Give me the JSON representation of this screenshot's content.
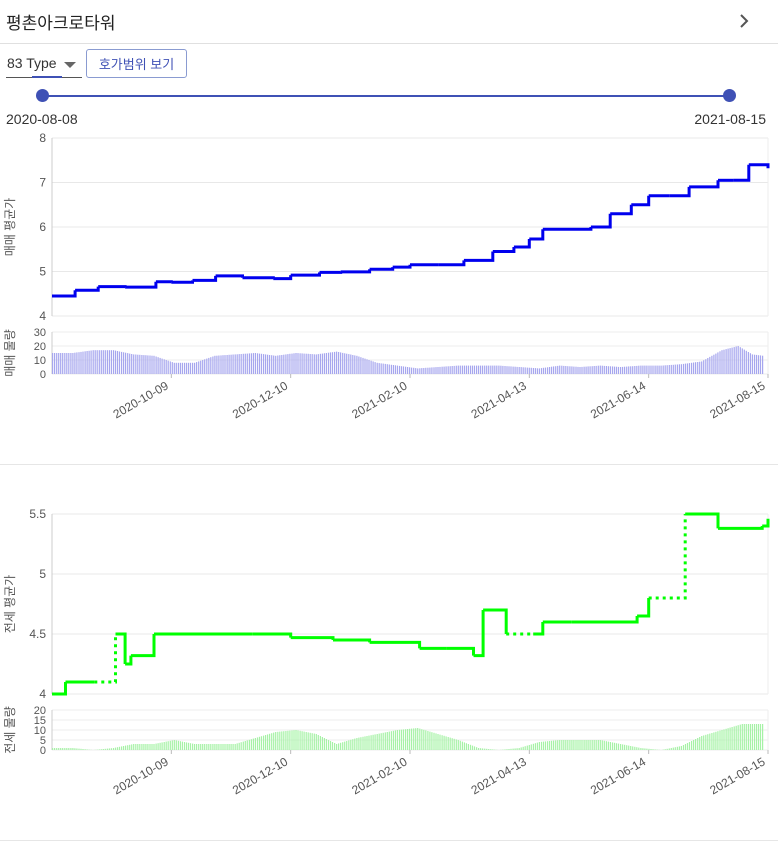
{
  "header": {
    "title": "평촌아크로타워"
  },
  "controls": {
    "type_select": "83 Type",
    "range_button": "호가범위 보기",
    "range_start": "2020-08-08",
    "range_end": "2021-08-15"
  },
  "colors": {
    "accent": "#3f51b5",
    "sale": "#0000ee",
    "sale_volume": "#a6a6ee",
    "rent": "#00ff00",
    "rent_volume": "#a6f2a6"
  },
  "icons": {
    "header_chevron": "chevron-right-icon",
    "select_caret": "caret-down-icon"
  },
  "chart_data": [
    {
      "type": "line",
      "ylabel": "매매 평균가",
      "ylim": [
        4,
        8
      ],
      "yticks": [
        "4",
        "5",
        "6",
        "7",
        "8"
      ],
      "grid": true,
      "series": [
        {
          "x": [
            "2020-08-08",
            "2020-08-20",
            "2020-09-01",
            "2020-09-15",
            "2020-10-01",
            "2020-10-09",
            "2020-10-20",
            "2020-11-01",
            "2020-11-15",
            "2020-12-01",
            "2020-12-10",
            "2020-12-25",
            "2021-01-05",
            "2021-01-20",
            "2021-02-01",
            "2021-02-10",
            "2021-02-25",
            "2021-03-10",
            "2021-03-25",
            "2021-04-05",
            "2021-04-13",
            "2021-04-20",
            "2021-05-01",
            "2021-05-15",
            "2021-05-25",
            "2021-06-05",
            "2021-06-14",
            "2021-06-25",
            "2021-07-05",
            "2021-07-20",
            "2021-07-28",
            "2021-08-05",
            "2021-08-15"
          ],
          "y": [
            4.45,
            4.58,
            4.66,
            4.65,
            4.77,
            4.76,
            4.8,
            4.9,
            4.86,
            4.84,
            4.92,
            4.98,
            4.99,
            5.05,
            5.1,
            5.15,
            5.15,
            5.25,
            5.45,
            5.55,
            5.73,
            5.95,
            5.95,
            6.0,
            6.3,
            6.5,
            6.7,
            6.7,
            6.9,
            7.05,
            7.05,
            7.4,
            7.32
          ]
        }
      ]
    },
    {
      "type": "bar",
      "ylabel": "매매 물량",
      "ylim": [
        0,
        30
      ],
      "yticks": [
        "0",
        "10",
        "20",
        "30"
      ],
      "xticks": [
        "2020-10-09",
        "2020-12-10",
        "2021-02-10",
        "2021-04-13",
        "2021-06-14",
        "2021-08-15"
      ],
      "anchors": [
        [
          0,
          15
        ],
        [
          20,
          15
        ],
        [
          40,
          17
        ],
        [
          60,
          17
        ],
        [
          80,
          14
        ],
        [
          100,
          13
        ],
        [
          120,
          8
        ],
        [
          140,
          8
        ],
        [
          160,
          13
        ],
        [
          180,
          14
        ],
        [
          200,
          15
        ],
        [
          220,
          13
        ],
        [
          240,
          15
        ],
        [
          260,
          14
        ],
        [
          280,
          16
        ],
        [
          300,
          13
        ],
        [
          320,
          8
        ],
        [
          340,
          6
        ],
        [
          360,
          4
        ],
        [
          380,
          5
        ],
        [
          400,
          6
        ],
        [
          420,
          6
        ],
        [
          440,
          6
        ],
        [
          460,
          5
        ],
        [
          480,
          4
        ],
        [
          500,
          6
        ],
        [
          520,
          5
        ],
        [
          540,
          6
        ],
        [
          560,
          5
        ],
        [
          580,
          6
        ],
        [
          600,
          6
        ],
        [
          620,
          7
        ],
        [
          640,
          9
        ],
        [
          660,
          17
        ],
        [
          676,
          20
        ],
        [
          690,
          14
        ],
        [
          701,
          13
        ]
      ]
    },
    {
      "type": "line",
      "ylabel": "전세 평균가",
      "ylim": [
        4,
        5.5
      ],
      "yticks": [
        "4",
        "4.5",
        "5",
        "5.5"
      ],
      "grid": true,
      "series": [
        {
          "x": [
            "2020-08-08",
            "2020-08-15",
            "2020-08-30",
            "2020-09-10",
            "2020-09-15",
            "2020-09-18",
            "2020-09-30",
            "2020-11-20",
            "2020-12-10",
            "2021-01-01",
            "2021-01-20",
            "2021-02-15",
            "2021-03-01",
            "2021-03-15",
            "2021-03-20",
            "2021-04-01",
            "2021-04-15",
            "2021-04-20",
            "2021-05-05",
            "2021-05-20",
            "2021-06-08",
            "2021-06-14",
            "2021-06-25",
            "2021-07-03",
            "2021-07-20",
            "2021-08-12",
            "2021-08-15"
          ],
          "y": [
            4.0,
            4.1,
            4.1,
            4.5,
            4.25,
            4.32,
            4.5,
            4.5,
            4.47,
            4.45,
            4.43,
            4.38,
            4.38,
            4.32,
            4.7,
            4.5,
            4.5,
            4.6,
            4.6,
            4.6,
            4.65,
            4.8,
            4.8,
            5.5,
            5.38,
            5.4,
            5.46
          ],
          "dashed": [
            false,
            false,
            true,
            false,
            false,
            false,
            false,
            false,
            false,
            false,
            false,
            false,
            false,
            false,
            false,
            true,
            false,
            false,
            false,
            false,
            false,
            true,
            true,
            false,
            false,
            false
          ]
        }
      ]
    },
    {
      "type": "bar",
      "ylabel": "전세 물량",
      "ylim": [
        0,
        20
      ],
      "yticks": [
        "0",
        "5",
        "10",
        "15",
        "20"
      ],
      "xticks": [
        "2020-10-09",
        "2020-12-10",
        "2021-02-10",
        "2021-04-13",
        "2021-06-14",
        "2021-08-15"
      ],
      "anchors": [
        [
          0,
          1
        ],
        [
          20,
          1
        ],
        [
          40,
          0
        ],
        [
          60,
          1
        ],
        [
          80,
          3
        ],
        [
          100,
          3
        ],
        [
          120,
          5
        ],
        [
          140,
          3
        ],
        [
          160,
          3
        ],
        [
          180,
          3
        ],
        [
          200,
          6
        ],
        [
          220,
          9
        ],
        [
          240,
          10
        ],
        [
          260,
          8
        ],
        [
          280,
          3
        ],
        [
          300,
          6
        ],
        [
          320,
          8
        ],
        [
          340,
          10
        ],
        [
          360,
          11
        ],
        [
          380,
          8
        ],
        [
          400,
          5
        ],
        [
          420,
          1
        ],
        [
          440,
          0
        ],
        [
          460,
          1
        ],
        [
          480,
          4
        ],
        [
          500,
          5
        ],
        [
          520,
          5
        ],
        [
          540,
          5
        ],
        [
          560,
          3
        ],
        [
          580,
          1
        ],
        [
          600,
          0
        ],
        [
          620,
          2
        ],
        [
          640,
          7
        ],
        [
          660,
          10
        ],
        [
          680,
          13
        ],
        [
          701,
          13
        ]
      ]
    }
  ]
}
